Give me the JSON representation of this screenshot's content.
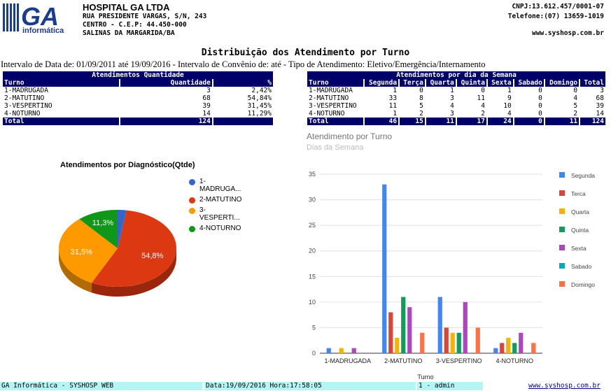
{
  "header": {
    "logo_text": "GA",
    "logo_sub": "informática",
    "hospital": "HOSPITAL GA LTDA",
    "address1": "RUA PRESIDENTE VARGAS, S/N, 243",
    "address2": "CENTRO - C.E.P: 44.450-000",
    "address3": "SALINAS DA MARGARIDA/BA",
    "cnpj": "CNPJ:13.612.457/0001-07",
    "phone": "Telefone:(07) 13659-1019",
    "site": "www.syshosp.com.br"
  },
  "report": {
    "title": "Distribuição dos Atendimento por Turno",
    "interval": "Intervalo de Data de: 01/09/2011 até 19/09/2016 - Intervalo de Convênio de: até - Tipo de Atendimento: Eletivo/Emergência/Internamento"
  },
  "table_qty": {
    "caption": "Atendimentos Quantidade",
    "headers": [
      "Turno",
      "Quantidade",
      "%"
    ],
    "rows": [
      [
        "1-MADRUGADA",
        "3",
        "2,42%"
      ],
      [
        "2-MATUTINO",
        "68",
        "54,84%"
      ],
      [
        "3-VESPERTINO",
        "39",
        "31,45%"
      ],
      [
        "4-NOTURNO",
        "14",
        "11,29%"
      ]
    ],
    "total": [
      "Total",
      "124",
      ""
    ]
  },
  "table_week": {
    "caption": "Atendimentos por dia da Semana",
    "headers": [
      "Turno",
      "Segunda",
      "Terça",
      "Quarta",
      "Quinta",
      "Sexta",
      "Sabado",
      "Domingo",
      "Total"
    ],
    "rows": [
      [
        "1-MADRUGADA",
        "1",
        "0",
        "1",
        "0",
        "1",
        "0",
        "0",
        "3"
      ],
      [
        "2-MATUTINO",
        "33",
        "8",
        "3",
        "11",
        "9",
        "0",
        "4",
        "68"
      ],
      [
        "3-VESPERTINO",
        "11",
        "5",
        "4",
        "4",
        "10",
        "0",
        "5",
        "39"
      ],
      [
        "4-NOTURNO",
        "1",
        "2",
        "3",
        "2",
        "4",
        "0",
        "2",
        "14"
      ]
    ],
    "total": [
      "Total",
      "46",
      "15",
      "11",
      "17",
      "24",
      "0",
      "11",
      "124"
    ]
  },
  "pie": {
    "title": "Atendimentos por Diagnóstico(Qtde)",
    "legend": [
      "1-\nMADRUGA...",
      "2-MATUTINO",
      "3-\nVESPERTI...",
      "4-NOTURNO"
    ],
    "labels": [
      "54,8%",
      "31,5%",
      "11,3%"
    ],
    "colors": [
      "#3366cc",
      "#dc3912",
      "#ff9900",
      "#109618"
    ]
  },
  "chart_data": {
    "type": "bar",
    "title": "Atendimento por Turno",
    "subtitle": "Dias da Semana",
    "xlabel": "Turno",
    "ylabel": "",
    "ylim": [
      0,
      35
    ],
    "yticks": [
      "0",
      "5",
      "10",
      "15",
      "20",
      "25",
      "30",
      "35"
    ],
    "categories": [
      "1-MADRUGADA",
      "2-MATUTINO",
      "3-VESPERTINO",
      "4-NOTURNO"
    ],
    "series": [
      {
        "name": "Segunda",
        "values": [
          1,
          33,
          11,
          1
        ],
        "color": "#4285f4"
      },
      {
        "name": "Terca",
        "values": [
          0,
          8,
          5,
          2
        ],
        "color": "#db4437"
      },
      {
        "name": "Quarta",
        "values": [
          1,
          3,
          4,
          3
        ],
        "color": "#f4b400"
      },
      {
        "name": "Quinta",
        "values": [
          0,
          11,
          4,
          2
        ],
        "color": "#0f9d58"
      },
      {
        "name": "Sexta",
        "values": [
          1,
          9,
          10,
          4
        ],
        "color": "#ab47bc"
      },
      {
        "name": "Sabado",
        "values": [
          0,
          0,
          0,
          0
        ],
        "color": "#00acc1"
      },
      {
        "name": "Domingo",
        "values": [
          0,
          4,
          5,
          2
        ],
        "color": "#ff7043"
      }
    ],
    "pie_values": [
      3,
      68,
      39,
      14
    ]
  },
  "footer": {
    "app": "GA Informática - SYSHOSP WEB",
    "datetime": "Data:19/09/2016 Hora:17:58:05",
    "user": "1 - admin",
    "site": "www.syshosp.com.br"
  }
}
